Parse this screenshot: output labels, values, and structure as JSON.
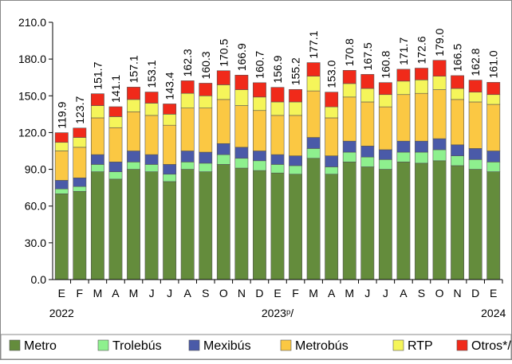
{
  "chart_data": {
    "type": "stacked_bar",
    "categories": [
      "E",
      "F",
      "M",
      "A",
      "M",
      "J",
      "J",
      "A",
      "S",
      "O",
      "N",
      "D",
      "E",
      "F",
      "M",
      "A",
      "M",
      "J",
      "J",
      "A",
      "S",
      "O",
      "N",
      "D",
      "E"
    ],
    "years": [
      "2022",
      "2023ᵖ/",
      "2024"
    ],
    "series": [
      {
        "name": "Metro",
        "color": "#648c3c",
        "values": [
          70,
          72,
          88,
          82,
          90,
          88,
          80,
          90,
          88,
          94,
          91,
          89,
          87,
          86,
          99,
          86,
          96,
          92,
          90,
          96,
          95,
          97,
          93,
          90,
          88
        ]
      },
      {
        "name": "Trolebús",
        "color": "#8ef08e",
        "values": [
          4,
          4,
          6,
          6,
          6,
          6,
          6,
          6,
          7,
          8,
          8,
          8,
          7,
          7,
          8,
          6,
          8,
          8,
          8,
          8,
          9,
          9,
          8,
          8,
          8
        ]
      },
      {
        "name": "Mexibús",
        "color": "#4a5aa8",
        "values": [
          7,
          7,
          8,
          8,
          9,
          8,
          8,
          9,
          9,
          9,
          9,
          8,
          8,
          8,
          9,
          9,
          9,
          9,
          8,
          9,
          9,
          9,
          9,
          9,
          9
        ]
      },
      {
        "name": "Metrobús",
        "color": "#fbc843",
        "values": [
          24,
          25,
          30,
          28,
          32,
          32,
          32,
          35,
          36,
          36,
          34,
          33,
          32,
          33,
          38,
          31,
          36,
          36,
          35,
          38,
          39,
          40,
          37,
          38,
          38
        ]
      },
      {
        "name": "RTP",
        "color": "#f5f55a",
        "values": [
          7,
          8,
          10,
          9,
          10,
          10,
          9,
          12,
          10,
          12,
          13,
          11,
          11,
          11,
          12,
          9,
          11,
          11,
          10,
          11,
          11,
          11,
          9,
          8,
          8
        ]
      },
      {
        "name": "Otros*/",
        "color": "#f02a1a",
        "values": [
          7.9,
          7.7,
          9.7,
          8.1,
          10.1,
          9.1,
          8.4,
          10.3,
          10.3,
          11.5,
          11.9,
          11.7,
          11.9,
          10.2,
          11.1,
          12.0,
          10.8,
          11.5,
          9.8,
          9.7,
          9.6,
          13.0,
          10.5,
          9.8,
          10.0
        ]
      }
    ],
    "totals": [
      119.9,
      123.7,
      151.7,
      141.1,
      157.1,
      153.1,
      143.4,
      162.3,
      160.3,
      170.5,
      166.9,
      160.7,
      156.9,
      155.2,
      177.1,
      153.0,
      170.8,
      167.5,
      160.8,
      171.7,
      172.6,
      179.0,
      166.5,
      162.8,
      161.0
    ],
    "total_labels": [
      "119.9",
      "123.7",
      "151.7",
      "141.1",
      "157.1",
      "153.1",
      "143.4",
      "162.3",
      "160.3",
      "170.5",
      "166.9",
      "160.7",
      "156.9",
      "155.2",
      "177.1",
      "153.0",
      "170.8",
      "167.5",
      "160.8",
      "171.7",
      "172.6",
      "179.0",
      "166.5",
      "162.8",
      "161.0"
    ],
    "ylim": [
      0,
      210
    ],
    "yticks": [
      {
        "value": 0,
        "label": "0.0"
      },
      {
        "value": 30,
        "label": "30.0"
      },
      {
        "value": 60,
        "label": "60.0"
      },
      {
        "value": 90,
        "label": "90.0"
      },
      {
        "value": 120,
        "label": "120.0"
      },
      {
        "value": 150,
        "label": "150.0"
      },
      {
        "value": 180,
        "label": "180.0"
      },
      {
        "value": 210,
        "label": "210.0"
      }
    ],
    "grid": false
  }
}
